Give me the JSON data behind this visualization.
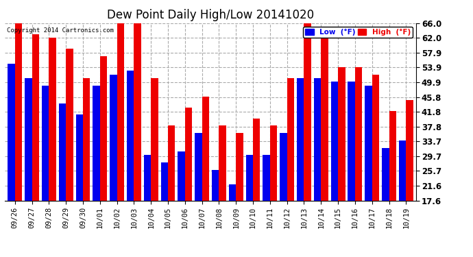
{
  "title": "Dew Point Daily High/Low 20141020",
  "copyright": "Copyright 2014 Cartronics.com",
  "dates": [
    "09/26",
    "09/27",
    "09/28",
    "09/29",
    "09/30",
    "10/01",
    "10/02",
    "10/03",
    "10/04",
    "10/05",
    "10/06",
    "10/07",
    "10/08",
    "10/09",
    "10/10",
    "10/11",
    "10/12",
    "10/13",
    "10/14",
    "10/15",
    "10/16",
    "10/17",
    "10/18",
    "10/19"
  ],
  "low_values": [
    55.0,
    51.0,
    49.0,
    44.0,
    41.0,
    49.0,
    52.0,
    53.0,
    30.0,
    28.0,
    31.0,
    36.0,
    26.0,
    22.0,
    30.0,
    30.0,
    36.0,
    51.0,
    51.0,
    50.0,
    50.0,
    49.0,
    32.0,
    34.0
  ],
  "high_values": [
    66.0,
    63.0,
    62.0,
    59.0,
    51.0,
    57.0,
    66.0,
    66.0,
    51.0,
    38.0,
    43.0,
    46.0,
    38.0,
    36.0,
    40.0,
    38.0,
    51.0,
    66.0,
    64.0,
    54.0,
    54.0,
    52.0,
    42.0,
    45.0
  ],
  "low_color": "#0000ee",
  "high_color": "#ee0000",
  "bg_color": "#ffffff",
  "grid_color": "#aaaaaa",
  "yticks": [
    17.6,
    21.6,
    25.7,
    29.7,
    33.7,
    37.8,
    41.8,
    45.8,
    49.9,
    53.9,
    57.9,
    62.0,
    66.0
  ],
  "ymin": 17.6,
  "ymax": 66.0,
  "bar_width": 0.42,
  "legend_low": "Low  (°F)",
  "legend_high": "High  (°F)"
}
